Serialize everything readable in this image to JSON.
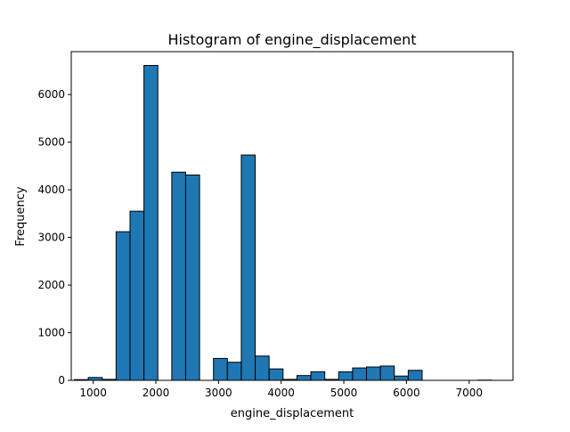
{
  "chart_data": {
    "type": "bar",
    "title": "Histogram of engine_displacement",
    "xlabel": "engine_displacement",
    "ylabel": "Frequency",
    "xlim": [
      650,
      7700
    ],
    "ylim": [
      0,
      6900
    ],
    "xticks": [
      1000,
      2000,
      3000,
      4000,
      5000,
      6000,
      7000
    ],
    "yticks": [
      0,
      1000,
      2000,
      3000,
      4000,
      5000,
      6000
    ],
    "grid": false,
    "bar_color": "#1f77b4",
    "edge_color": "#000000",
    "bin_edges": [
      700,
      922,
      1144,
      1366,
      1588,
      1810,
      2032,
      2254,
      2476,
      2698,
      2920,
      3142,
      3364,
      3586,
      3808,
      4030,
      4252,
      4474,
      4696,
      4918,
      5140,
      5362,
      5584,
      5806,
      6028,
      6250,
      6472,
      6694,
      6916,
      7138,
      7360
    ],
    "values": [
      15,
      60,
      20,
      3120,
      3550,
      6610,
      0,
      4370,
      4310,
      0,
      460,
      380,
      4730,
      510,
      240,
      20,
      100,
      180,
      20,
      180,
      260,
      280,
      300,
      90,
      210,
      0,
      0,
      0,
      0,
      5
    ]
  }
}
